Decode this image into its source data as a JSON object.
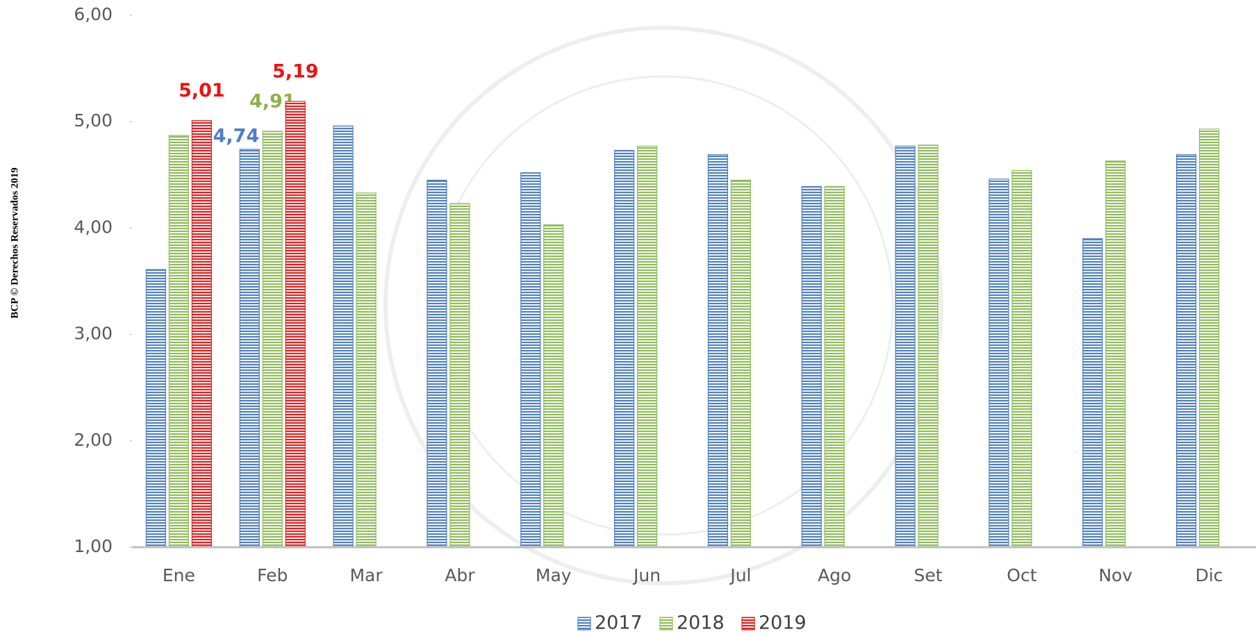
{
  "chart_data": {
    "type": "bar",
    "side_note": "BCP © Derechos Reservados 2019",
    "categories": [
      "Ene",
      "Feb",
      "Mar",
      "Abr",
      "May",
      "Jun",
      "Jul",
      "Ago",
      "Set",
      "Oct",
      "Nov",
      "Dic"
    ],
    "series": [
      {
        "name": "2017",
        "color": "#4f7fc0",
        "label_color": "#4f7fc0",
        "values": [
          3.61,
          4.74,
          4.96,
          4.45,
          4.52,
          4.73,
          4.69,
          4.39,
          4.77,
          4.46,
          3.9,
          4.69
        ],
        "value_labels": [
          null,
          "4,74",
          null,
          null,
          null,
          null,
          null,
          null,
          null,
          null,
          null,
          null
        ]
      },
      {
        "name": "2018",
        "color": "#8fbc5a",
        "label_color": "#8fb04a",
        "values": [
          4.87,
          4.91,
          4.33,
          4.23,
          4.03,
          4.77,
          4.45,
          4.39,
          4.78,
          4.54,
          4.63,
          4.93
        ],
        "value_labels": [
          null,
          "4,91",
          null,
          null,
          null,
          null,
          null,
          null,
          null,
          null,
          null,
          null
        ]
      },
      {
        "name": "2019",
        "color": "#e81c1c",
        "label_color": "#ee1111",
        "values": [
          5.01,
          5.19,
          null,
          null,
          null,
          null,
          null,
          null,
          null,
          null,
          null,
          null
        ],
        "value_labels": [
          "5,01",
          "5,19",
          null,
          null,
          null,
          null,
          null,
          null,
          null,
          null,
          null,
          null
        ]
      }
    ],
    "ylim": [
      1,
      6
    ],
    "yticks": [
      {
        "value": 1,
        "label": "1,00"
      },
      {
        "value": 2,
        "label": "2,00"
      },
      {
        "value": 3,
        "label": "3,00"
      },
      {
        "value": 4,
        "label": "4,00"
      },
      {
        "value": 5,
        "label": "5,00"
      },
      {
        "value": 6,
        "label": "6,00"
      }
    ],
    "grid": false,
    "legend": "bottom"
  }
}
